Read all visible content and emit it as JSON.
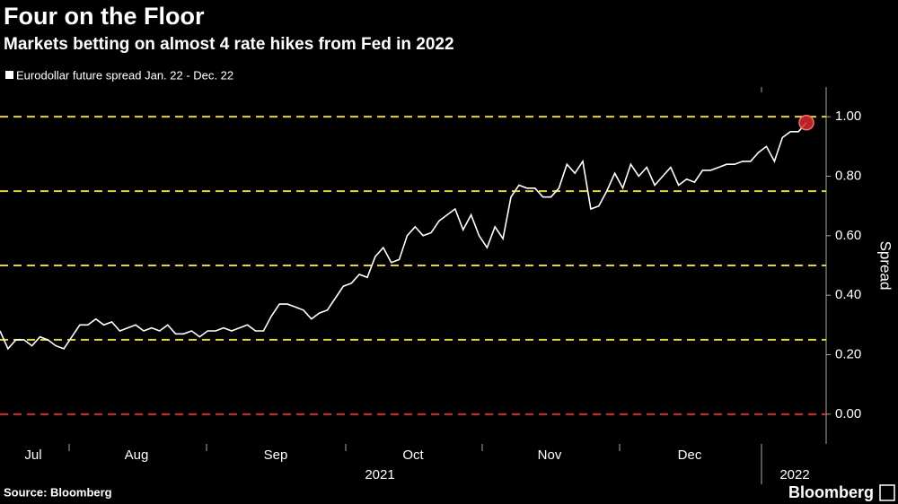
{
  "chart_data": {
    "type": "line",
    "title": "Four on the Floor",
    "subtitle": "Markets betting on almost 4 rate hikes from Fed in 2022",
    "series": [
      {
        "name": "Eurodollar future spread Jan. 22 - Dec. 22",
        "color": "#ffffff",
        "values": [
          0.28,
          0.22,
          0.25,
          0.25,
          0.23,
          0.26,
          0.25,
          0.23,
          0.22,
          0.26,
          0.3,
          0.3,
          0.32,
          0.3,
          0.31,
          0.28,
          0.29,
          0.3,
          0.28,
          0.29,
          0.28,
          0.3,
          0.27,
          0.27,
          0.28,
          0.26,
          0.28,
          0.28,
          0.29,
          0.28,
          0.29,
          0.3,
          0.28,
          0.28,
          0.33,
          0.37,
          0.37,
          0.36,
          0.35,
          0.32,
          0.34,
          0.35,
          0.39,
          0.43,
          0.44,
          0.47,
          0.46,
          0.53,
          0.56,
          0.51,
          0.52,
          0.6,
          0.63,
          0.6,
          0.61,
          0.65,
          0.67,
          0.69,
          0.62,
          0.67,
          0.6,
          0.56,
          0.63,
          0.59,
          0.73,
          0.77,
          0.76,
          0.76,
          0.73,
          0.73,
          0.76,
          0.84,
          0.81,
          0.85,
          0.69,
          0.7,
          0.75,
          0.81,
          0.76,
          0.84,
          0.8,
          0.83,
          0.77,
          0.8,
          0.83,
          0.77,
          0.79,
          0.78,
          0.82,
          0.82,
          0.83,
          0.84,
          0.84,
          0.85,
          0.85,
          0.88,
          0.9,
          0.85,
          0.93,
          0.95,
          0.95,
          0.98
        ]
      }
    ],
    "highlight_color": "#d62b2b",
    "x_month_labels": [
      "Jul",
      "Aug",
      "Sep",
      "Oct",
      "Nov",
      "Dec"
    ],
    "x_year_labels": [
      "2021",
      "2022"
    ],
    "ylabel": "Spread",
    "ylim": [
      -0.1,
      1.1
    ],
    "yticks": [
      {
        "value": 0,
        "label": "0.00"
      },
      {
        "value": 0.2,
        "label": "0.20"
      },
      {
        "value": 0.4,
        "label": "0.40"
      },
      {
        "value": 0.6,
        "label": "0.60"
      },
      {
        "value": 0.8,
        "label": "0.80"
      },
      {
        "value": 1,
        "label": "1.00"
      }
    ],
    "reference_lines": [
      {
        "value": 0,
        "color": "#d62b2b"
      },
      {
        "value": 0.25,
        "color": "#e8d43a"
      },
      {
        "value": 0.5,
        "color": "#e8d43a"
      },
      {
        "value": 0.75,
        "color": "#e8d43a"
      },
      {
        "value": 1,
        "color": "#e8d43a"
      }
    ],
    "source": "Source: Bloomberg",
    "brand": "Bloomberg"
  }
}
